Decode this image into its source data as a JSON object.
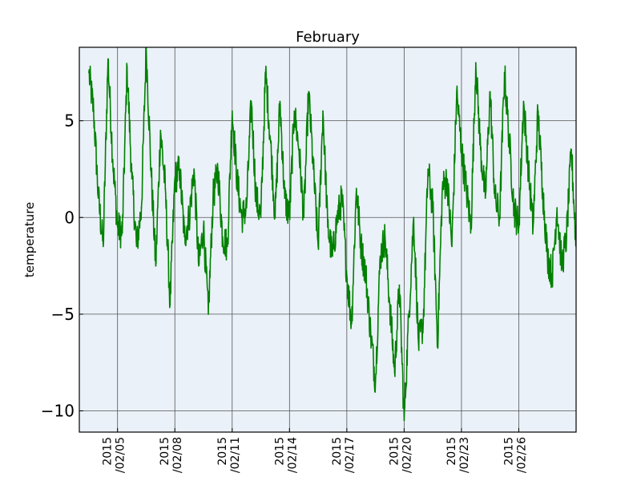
{
  "chart_data": {
    "type": "line",
    "title": "February",
    "xlabel": "",
    "ylabel": "temperature",
    "xlim": [
      "2015-02-03",
      "2015-03-01"
    ],
    "ylim": [
      -11.1,
      8.8
    ],
    "grid": true,
    "x_ticks": [
      {
        "date": "2015-02-05",
        "label_line1": "2015",
        "label_line2": "/02/05"
      },
      {
        "date": "2015-02-08",
        "label_line1": "2015",
        "label_line2": "/02/08"
      },
      {
        "date": "2015-02-11",
        "label_line1": "2015",
        "label_line2": "/02/11"
      },
      {
        "date": "2015-02-14",
        "label_line1": "2015",
        "label_line2": "/02/14"
      },
      {
        "date": "2015-02-17",
        "label_line1": "2015",
        "label_line2": "/02/17"
      },
      {
        "date": "2015-02-20",
        "label_line1": "2015",
        "label_line2": "/02/20"
      },
      {
        "date": "2015-02-23",
        "label_line1": "2015",
        "label_line2": "/02/23"
      },
      {
        "date": "2015-02-26",
        "label_line1": "2015",
        "label_line2": "/02/26"
      }
    ],
    "y_ticks": [
      {
        "value": 5,
        "label": "5"
      },
      {
        "value": 0,
        "label": "0"
      },
      {
        "value": -5,
        "label": "−5"
      },
      {
        "value": -10,
        "label": "−10"
      }
    ],
    "series": [
      {
        "color": "#008000",
        "x": [
          "2015-02-03 12:00",
          "2015-02-03 18:00",
          "2015-02-04 00:00",
          "2015-02-04 06:00",
          "2015-02-04 12:00",
          "2015-02-04 18:00",
          "2015-02-05 00:00",
          "2015-02-05 06:00",
          "2015-02-05 12:00",
          "2015-02-05 18:00",
          "2015-02-06 00:00",
          "2015-02-06 06:00",
          "2015-02-06 12:00",
          "2015-02-06 18:00",
          "2015-02-07 00:00",
          "2015-02-07 06:00",
          "2015-02-07 12:00",
          "2015-02-07 18:00",
          "2015-02-08 00:00",
          "2015-02-08 06:00",
          "2015-02-08 12:00",
          "2015-02-08 18:00",
          "2015-02-09 00:00",
          "2015-02-09 06:00",
          "2015-02-09 12:00",
          "2015-02-09 18:00",
          "2015-02-10 00:00",
          "2015-02-10 06:00",
          "2015-02-10 12:00",
          "2015-02-10 18:00",
          "2015-02-11 00:00",
          "2015-02-11 06:00",
          "2015-02-11 12:00",
          "2015-02-11 18:00",
          "2015-02-12 00:00",
          "2015-02-12 06:00",
          "2015-02-12 12:00",
          "2015-02-12 18:00",
          "2015-02-13 00:00",
          "2015-02-13 06:00",
          "2015-02-13 12:00",
          "2015-02-13 18:00",
          "2015-02-14 00:00",
          "2015-02-14 06:00",
          "2015-02-14 12:00",
          "2015-02-14 18:00",
          "2015-02-15 00:00",
          "2015-02-15 06:00",
          "2015-02-15 12:00",
          "2015-02-15 18:00",
          "2015-02-16 00:00",
          "2015-02-16 06:00",
          "2015-02-16 12:00",
          "2015-02-16 18:00",
          "2015-02-17 00:00",
          "2015-02-17 06:00",
          "2015-02-17 12:00",
          "2015-02-17 18:00",
          "2015-02-18 00:00",
          "2015-02-18 06:00",
          "2015-02-18 12:00",
          "2015-02-18 18:00",
          "2015-02-19 00:00",
          "2015-02-19 06:00",
          "2015-02-19 12:00",
          "2015-02-19 18:00",
          "2015-02-20 00:00",
          "2015-02-20 06:00",
          "2015-02-20 12:00",
          "2015-02-20 18:00",
          "2015-02-21 00:00",
          "2015-02-21 06:00",
          "2015-02-21 12:00",
          "2015-02-21 18:00",
          "2015-02-22 00:00",
          "2015-02-22 06:00",
          "2015-02-22 12:00",
          "2015-02-22 18:00",
          "2015-02-23 00:00",
          "2015-02-23 06:00",
          "2015-02-23 12:00",
          "2015-02-23 18:00",
          "2015-02-24 00:00",
          "2015-02-24 06:00",
          "2015-02-24 12:00",
          "2015-02-24 18:00",
          "2015-02-25 00:00",
          "2015-02-25 06:00",
          "2015-02-25 12:00",
          "2015-02-25 18:00",
          "2015-02-26 00:00",
          "2015-02-26 06:00",
          "2015-02-26 12:00",
          "2015-02-26 18:00",
          "2015-02-27 00:00",
          "2015-02-27 06:00",
          "2015-02-27 12:00",
          "2015-02-27 18:00",
          "2015-02-28 00:00",
          "2015-02-28 06:00",
          "2015-02-28 12:00",
          "2015-02-28 18:00",
          "2015-03-01 00:00"
        ],
        "y": [
          7.5,
          5.5,
          1.0,
          -1.5,
          8.2,
          3.0,
          -0.5,
          -0.8,
          7.8,
          2.0,
          -1.5,
          0.5,
          8.8,
          2.5,
          -2.5,
          4.5,
          1.5,
          -4.5,
          2.0,
          2.5,
          -1.0,
          0.0,
          2.5,
          -2.5,
          -0.5,
          -5.0,
          1.0,
          2.5,
          -1.0,
          -1.5,
          5.5,
          2.0,
          0.0,
          0.5,
          6.0,
          1.0,
          0.0,
          7.5,
          4.0,
          0.0,
          6.0,
          1.0,
          0.0,
          5.5,
          3.5,
          0.0,
          6.5,
          2.5,
          -1.5,
          5.5,
          -0.5,
          -2.0,
          0.0,
          1.0,
          -3.0,
          -5.5,
          1.5,
          -1.5,
          -3.0,
          -6.0,
          -8.5,
          -2.0,
          -1.0,
          -4.5,
          -8.0,
          -3.5,
          -10.5,
          -5.0,
          0.0,
          -6.5,
          -5.5,
          2.5,
          0.5,
          -6.5,
          1.5,
          2.0,
          -1.5,
          6.5,
          3.5,
          1.5,
          -0.5,
          8.0,
          3.5,
          1.0,
          6.5,
          1.0,
          0.0,
          7.5,
          4.0,
          0.5,
          -0.5,
          6.0,
          2.5,
          -0.5,
          5.5,
          1.5,
          -2.0,
          -3.0,
          0.5,
          -2.5,
          -1.0,
          3.5,
          -1.5
        ]
      }
    ]
  }
}
